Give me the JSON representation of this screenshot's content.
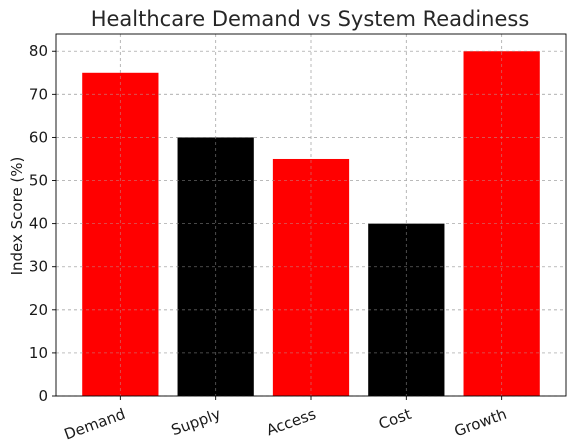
{
  "chart_data": {
    "type": "bar",
    "title": "Healthcare Demand vs System Readiness",
    "xlabel": "",
    "ylabel": "Index Score (%)",
    "categories": [
      "Demand",
      "Supply",
      "Access",
      "Cost",
      "Growth"
    ],
    "values": [
      75,
      60,
      55,
      40,
      80
    ],
    "bar_colors": [
      "#ff0000",
      "#000000",
      "#ff0000",
      "#000000",
      "#ff0000"
    ],
    "ylim": [
      0,
      84
    ],
    "yticks": [
      0,
      10,
      20,
      30,
      40,
      50,
      60,
      70,
      80
    ],
    "grid": true,
    "xtick_rotation_deg": -20
  }
}
